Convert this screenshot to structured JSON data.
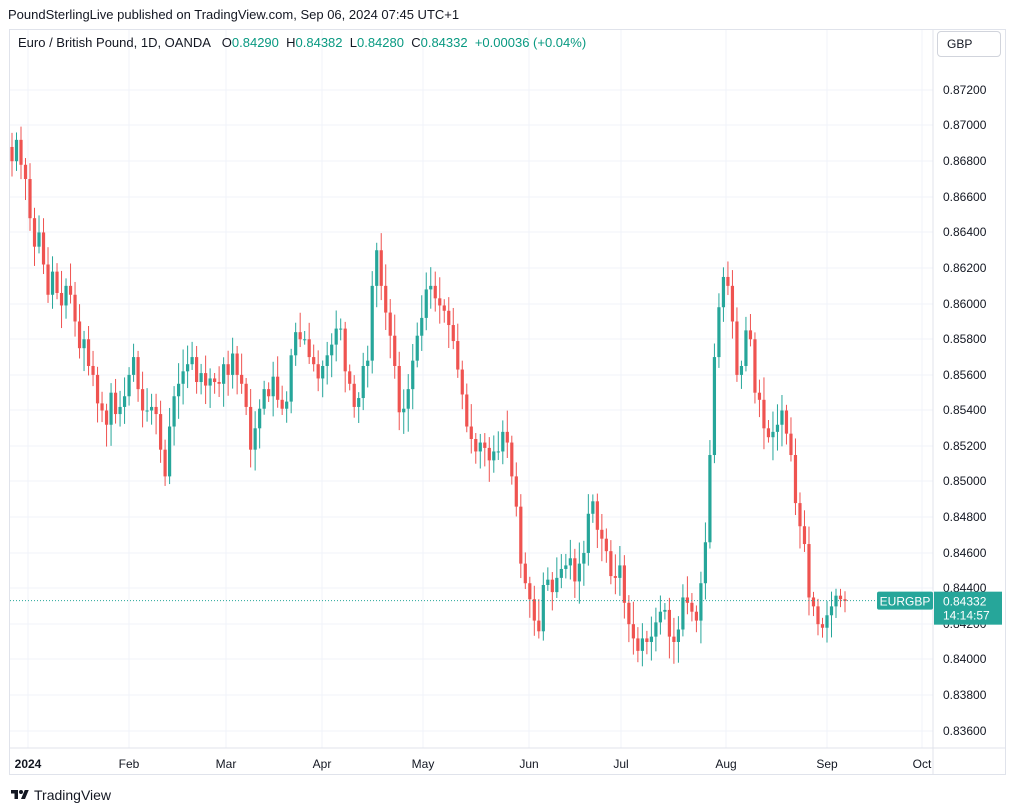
{
  "header": {
    "published": "PoundSterlingLive published on TradingView.com, Sep 06, 2024 07:45 UTC+1"
  },
  "legend": {
    "symbol": "Euro / British Pound, 1D, OANDA",
    "o_label": "O",
    "o": "0.84290",
    "h_label": "H",
    "h": "0.84382",
    "l_label": "L",
    "l": "0.84280",
    "c_label": "C",
    "c": "0.84332",
    "change": "+0.00036 (+0.04%)"
  },
  "currency_button": "GBP",
  "price_tag": {
    "symbol": "EURGBP",
    "price": "0.84332",
    "countdown": "14:14:57"
  },
  "footer": {
    "brand": "TradingView"
  },
  "colors": {
    "up": "#26a69a",
    "down": "#ef5350",
    "grid": "#f0f3fa",
    "text": "#131722"
  },
  "chart_data": {
    "type": "candlestick",
    "yticks": [
      "0.87200",
      "0.87000",
      "0.86800",
      "0.86600",
      "0.86400",
      "0.86200",
      "0.86000",
      "0.85800",
      "0.85600",
      "0.85400",
      "0.85200",
      "0.85000",
      "0.84800",
      "0.84600",
      "0.84400",
      "0.84200",
      "0.84000",
      "0.83800",
      "0.83600"
    ],
    "xticks": [
      "2024",
      "Feb",
      "Mar",
      "Apr",
      "May",
      "Jun",
      "Jul",
      "Aug",
      "Sep",
      "Oct"
    ],
    "ylim": [
      0.835,
      0.8735
    ],
    "last_price": 0.84332,
    "closes": [
      0.868,
      0.8692,
      0.8678,
      0.867,
      0.8648,
      0.8632,
      0.864,
      0.8622,
      0.8605,
      0.8618,
      0.8606,
      0.8599,
      0.861,
      0.8605,
      0.859,
      0.8575,
      0.858,
      0.8565,
      0.856,
      0.8544,
      0.854,
      0.8532,
      0.855,
      0.8538,
      0.8542,
      0.8548,
      0.856,
      0.857,
      0.8552,
      0.854,
      0.854,
      0.8542,
      0.8538,
      0.8518,
      0.8503,
      0.8531,
      0.8548,
      0.8555,
      0.8562,
      0.8566,
      0.857,
      0.8556,
      0.8561,
      0.8554,
      0.8558,
      0.8556,
      0.8555,
      0.8566,
      0.856,
      0.8572,
      0.856,
      0.8555,
      0.8542,
      0.8518,
      0.853,
      0.8541,
      0.8552,
      0.8548,
      0.8559,
      0.8546,
      0.8541,
      0.8545,
      0.8571,
      0.8584,
      0.858,
      0.858,
      0.857,
      0.8566,
      0.8558,
      0.8565,
      0.8571,
      0.8577,
      0.8586,
      0.8586,
      0.8562,
      0.8555,
      0.8542,
      0.8547,
      0.8565,
      0.8568,
      0.861,
      0.863,
      0.861,
      0.8595,
      0.8582,
      0.8565,
      0.8539,
      0.8541,
      0.8552,
      0.8568,
      0.8582,
      0.8592,
      0.8608,
      0.861,
      0.8603,
      0.8599,
      0.8596,
      0.8588,
      0.8579,
      0.8563,
      0.8549,
      0.8531,
      0.8524,
      0.8517,
      0.8522,
      0.8519,
      0.8512,
      0.8517,
      0.8517,
      0.8528,
      0.8522,
      0.8503,
      0.8486,
      0.8454,
      0.8443,
      0.8434,
      0.8422,
      0.8416,
      0.8442,
      0.8445,
      0.8438,
      0.8446,
      0.8451,
      0.8453,
      0.8457,
      0.8444,
      0.8454,
      0.846,
      0.8482,
      0.8489,
      0.8473,
      0.8468,
      0.8461,
      0.8447,
      0.8446,
      0.8453,
      0.8432,
      0.842,
      0.8412,
      0.8405,
      0.8412,
      0.841,
      0.8413,
      0.8421,
      0.8427,
      0.8428,
      0.8413,
      0.841,
      0.8417,
      0.8435,
      0.8432,
      0.8427,
      0.8422,
      0.8443,
      0.8466,
      0.8515,
      0.857,
      0.8598,
      0.8615,
      0.861,
      0.859,
      0.856,
      0.8565,
      0.8585,
      0.858,
      0.855,
      0.8546,
      0.853,
      0.8525,
      0.8528,
      0.8532,
      0.854,
      0.8527,
      0.8515,
      0.8488,
      0.8475,
      0.8465,
      0.8435,
      0.843,
      0.842,
      0.8418,
      0.8425,
      0.843,
      0.8436,
      0.8434,
      0.8433
    ],
    "highs_lows": "approximate, read off chart"
  }
}
